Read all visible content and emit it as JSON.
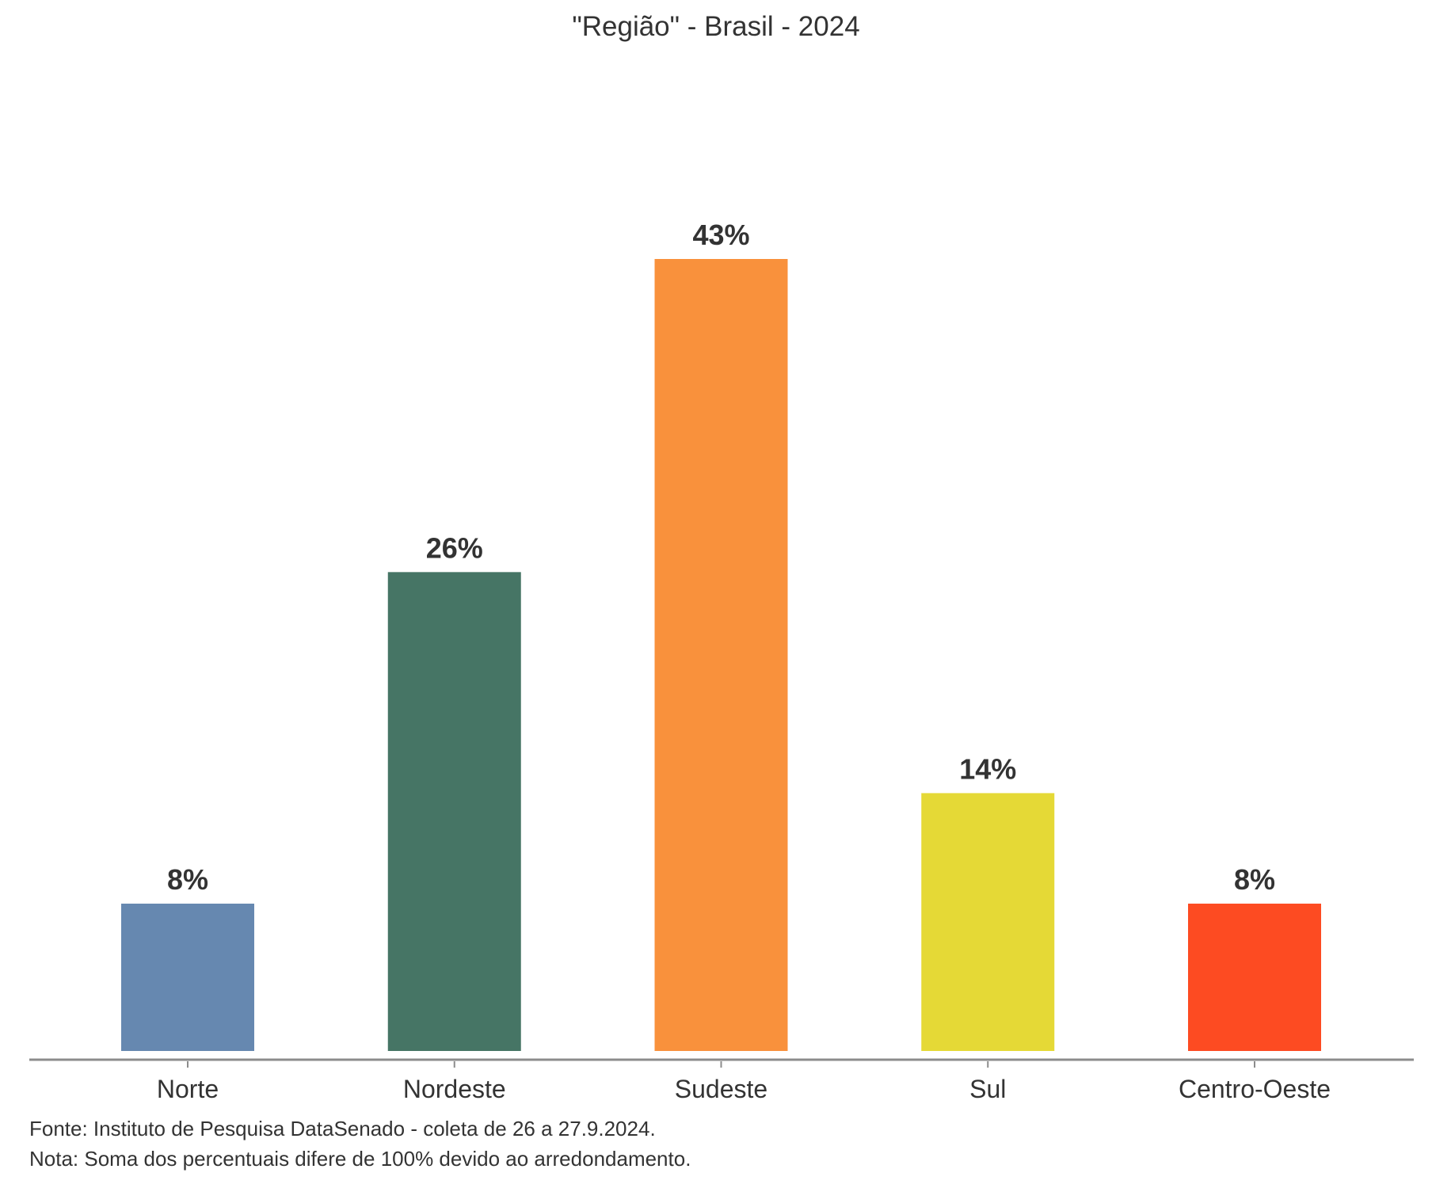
{
  "chart_data": {
    "type": "bar",
    "title": "\"Região\" - Brasil - 2024",
    "categories": [
      "Norte",
      "Nordeste",
      "Sudeste",
      "Sul",
      "Centro-Oeste"
    ],
    "values": [
      8,
      26,
      43,
      14,
      8
    ],
    "value_labels": [
      "8%",
      "26%",
      "43%",
      "14%",
      "8%"
    ],
    "colors": [
      "#6688b0",
      "#467565",
      "#f9913c",
      "#e5d936",
      "#fd4b22"
    ],
    "xlabel": "",
    "ylabel": "",
    "ylim": [
      0,
      43
    ],
    "grid": false,
    "legend": "none"
  },
  "footer": {
    "source": "Fonte: Instituto de Pesquisa DataSenado - coleta de 26 a 27.9.2024.",
    "note": "Nota: Soma dos percentuais difere de 100% devido ao arredondamento."
  }
}
